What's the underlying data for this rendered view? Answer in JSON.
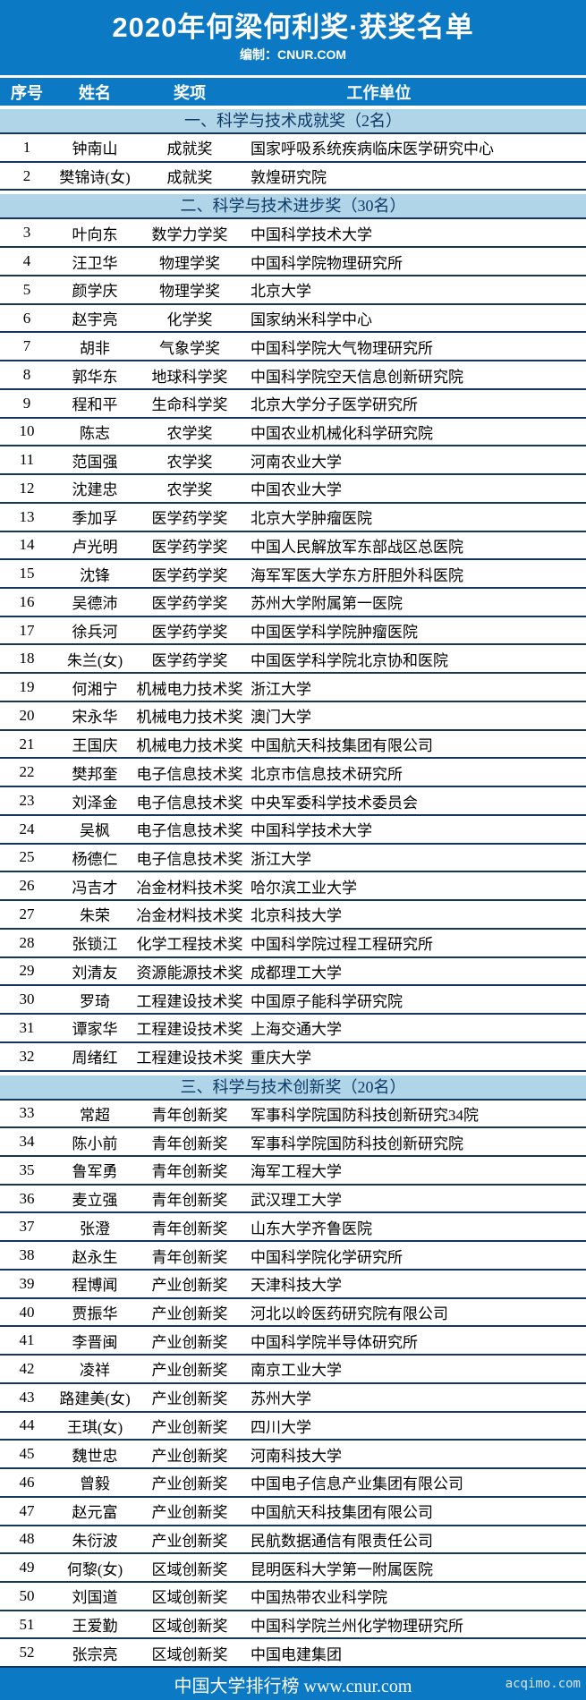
{
  "header": {
    "title": "2020年何梁何利奖·获奖名单",
    "subtitle": "编制：CNUR.COM"
  },
  "columns": {
    "no": "序号",
    "name": "姓名",
    "award": "奖项",
    "org": "工作单位"
  },
  "sections": [
    {
      "label": "一、科学与技术成就奖（2名）",
      "rows": [
        {
          "no": "1",
          "name": "钟南山",
          "award": "成就奖",
          "org": "国家呼吸系统疾病临床医学研究中心"
        },
        {
          "no": "2",
          "name": "樊锦诗(女)",
          "award": "成就奖",
          "org": "敦煌研究院"
        }
      ]
    },
    {
      "label": "二、科学与技术进步奖（30名）",
      "rows": [
        {
          "no": "3",
          "name": "叶向东",
          "award": "数学力学奖",
          "org": "中国科学技术大学"
        },
        {
          "no": "4",
          "name": "汪卫华",
          "award": "物理学奖",
          "org": "中国科学院物理研究所"
        },
        {
          "no": "5",
          "name": "颜学庆",
          "award": "物理学奖",
          "org": "北京大学"
        },
        {
          "no": "6",
          "name": "赵宇亮",
          "award": "化学奖",
          "org": "国家纳米科学中心"
        },
        {
          "no": "7",
          "name": "胡非",
          "award": "气象学奖",
          "org": "中国科学院大气物理研究所"
        },
        {
          "no": "8",
          "name": "郭华东",
          "award": "地球科学奖",
          "org": "中国科学院空天信息创新研究院"
        },
        {
          "no": "9",
          "name": "程和平",
          "award": "生命科学奖",
          "org": "北京大学分子医学研究所"
        },
        {
          "no": "10",
          "name": "陈志",
          "award": "农学奖",
          "org": "中国农业机械化科学研究院"
        },
        {
          "no": "11",
          "name": "范国强",
          "award": "农学奖",
          "org": "河南农业大学"
        },
        {
          "no": "12",
          "name": "沈建忠",
          "award": "农学奖",
          "org": "中国农业大学"
        },
        {
          "no": "13",
          "name": "季加孚",
          "award": "医学药学奖",
          "org": "北京大学肿瘤医院"
        },
        {
          "no": "14",
          "name": "卢光明",
          "award": "医学药学奖",
          "org": "中国人民解放军东部战区总医院"
        },
        {
          "no": "15",
          "name": "沈锋",
          "award": "医学药学奖",
          "org": "海军军医大学东方肝胆外科医院"
        },
        {
          "no": "16",
          "name": "吴德沛",
          "award": "医学药学奖",
          "org": "苏州大学附属第一医院"
        },
        {
          "no": "17",
          "name": "徐兵河",
          "award": "医学药学奖",
          "org": "中国医学科学院肿瘤医院"
        },
        {
          "no": "18",
          "name": "朱兰(女)",
          "award": "医学药学奖",
          "org": "中国医学科学院北京协和医院"
        },
        {
          "no": "19",
          "name": "何湘宁",
          "award": "机械电力技术奖",
          "org": "浙江大学"
        },
        {
          "no": "20",
          "name": "宋永华",
          "award": "机械电力技术奖",
          "org": "澳门大学"
        },
        {
          "no": "21",
          "name": "王国庆",
          "award": "机械电力技术奖",
          "org": "中国航天科技集团有限公司"
        },
        {
          "no": "22",
          "name": "樊邦奎",
          "award": "电子信息技术奖",
          "org": "北京市信息技术研究所"
        },
        {
          "no": "23",
          "name": "刘泽金",
          "award": "电子信息技术奖",
          "org": "中央军委科学技术委员会"
        },
        {
          "no": "24",
          "name": "吴枫",
          "award": "电子信息技术奖",
          "org": "中国科学技术大学"
        },
        {
          "no": "25",
          "name": "杨德仁",
          "award": "电子信息技术奖",
          "org": "浙江大学"
        },
        {
          "no": "26",
          "name": "冯吉才",
          "award": "冶金材料技术奖",
          "org": "哈尔滨工业大学"
        },
        {
          "no": "27",
          "name": "朱荣",
          "award": "冶金材料技术奖",
          "org": "北京科技大学"
        },
        {
          "no": "28",
          "name": "张锁江",
          "award": "化学工程技术奖",
          "org": "中国科学院过程工程研究所"
        },
        {
          "no": "29",
          "name": "刘清友",
          "award": "资源能源技术奖",
          "org": "成都理工大学"
        },
        {
          "no": "30",
          "name": "罗琦",
          "award": "工程建设技术奖",
          "org": "中国原子能科学研究院"
        },
        {
          "no": "31",
          "name": "谭家华",
          "award": "工程建设技术奖",
          "org": "上海交通大学"
        },
        {
          "no": "32",
          "name": "周绪红",
          "award": "工程建设技术奖",
          "org": "重庆大学"
        }
      ]
    },
    {
      "label": "三、科学与技术创新奖（20名）",
      "rows": [
        {
          "no": "33",
          "name": "常超",
          "award": "青年创新奖",
          "org": "军事科学院国防科技创新研究34院"
        },
        {
          "no": "34",
          "name": "陈小前",
          "award": "青年创新奖",
          "org": "军事科学院国防科技创新研究院"
        },
        {
          "no": "35",
          "name": "鲁军勇",
          "award": "青年创新奖",
          "org": "海军工程大学"
        },
        {
          "no": "36",
          "name": "麦立强",
          "award": "青年创新奖",
          "org": "武汉理工大学"
        },
        {
          "no": "37",
          "name": "张澄",
          "award": "青年创新奖",
          "org": "山东大学齐鲁医院"
        },
        {
          "no": "38",
          "name": "赵永生",
          "award": "青年创新奖",
          "org": "中国科学院化学研究所"
        },
        {
          "no": "39",
          "name": "程博闻",
          "award": "产业创新奖",
          "org": "天津科技大学"
        },
        {
          "no": "40",
          "name": "贾振华",
          "award": "产业创新奖",
          "org": "河北以岭医药研究院有限公司"
        },
        {
          "no": "41",
          "name": "李晋闽",
          "award": "产业创新奖",
          "org": "中国科学院半导体研究所"
        },
        {
          "no": "42",
          "name": "凌祥",
          "award": "产业创新奖",
          "org": "南京工业大学"
        },
        {
          "no": "43",
          "name": "路建美(女)",
          "award": "产业创新奖",
          "org": "苏州大学"
        },
        {
          "no": "44",
          "name": "王琪(女)",
          "award": "产业创新奖",
          "org": "四川大学"
        },
        {
          "no": "45",
          "name": "魏世忠",
          "award": "产业创新奖",
          "org": "河南科技大学"
        },
        {
          "no": "46",
          "name": "曾毅",
          "award": "产业创新奖",
          "org": "中国电子信息产业集团有限公司"
        },
        {
          "no": "47",
          "name": "赵元富",
          "award": "产业创新奖",
          "org": "中国航天科技集团有限公司"
        },
        {
          "no": "48",
          "name": "朱衍波",
          "award": "产业创新奖",
          "org": "民航数据通信有限责任公司"
        },
        {
          "no": "49",
          "name": "何黎(女)",
          "award": "区域创新奖",
          "org": "昆明医科大学第一附属医院"
        },
        {
          "no": "50",
          "name": "刘国道",
          "award": "区域创新奖",
          "org": "中国热带农业科学院"
        },
        {
          "no": "51",
          "name": "王爱勤",
          "award": "区域创新奖",
          "org": "中国科学院兰州化学物理研究所"
        },
        {
          "no": "52",
          "name": "张宗亮",
          "award": "区域创新奖",
          "org": "中国电建集团"
        }
      ]
    }
  ],
  "footer": {
    "site": "中国大学排行榜 www.cnur.com",
    "watermark": "acqimo.com"
  },
  "colors": {
    "primary-blue": "#0b79c4",
    "section-blue": "#b0d5e8",
    "line-navy": "#16365c",
    "text": "#000000",
    "section-text": "#0e3a66",
    "watermark": "#d9e5f0"
  }
}
